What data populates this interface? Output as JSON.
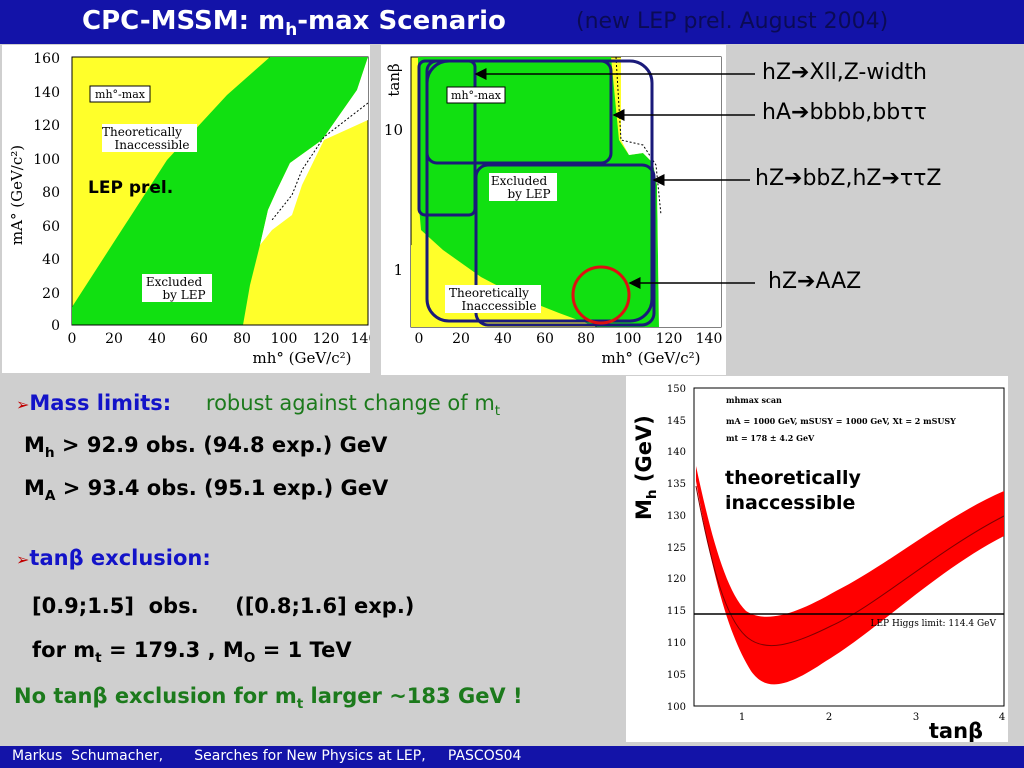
{
  "title": {
    "main_pre": "CPC-MSSM: m",
    "main_sub": "h",
    "main_post": "-max Scenario",
    "note": "(new LEP prel. August 2004)"
  },
  "plot_left": {
    "ylabel": "mA° (GeV/c²)",
    "xlabel": "mh° (GeV/c²)",
    "yticks": [
      "160",
      "140",
      "120",
      "100",
      "80",
      "60",
      "40",
      "20",
      "0"
    ],
    "xticks": [
      "0",
      "20",
      "40",
      "60",
      "80",
      "100",
      "120",
      "140"
    ],
    "scenario_box": "mh°-max",
    "text_theo_1": "Theoretically",
    "text_theo_2": "Inaccessible",
    "text_lep": "LEP prel.",
    "text_excl_1": "Excluded",
    "text_excl_2": "by LEP"
  },
  "plot_right": {
    "ylabel": "tanβ",
    "xlabel": "mh° (GeV/c²)",
    "yticks": [
      "10",
      "1"
    ],
    "xticks": [
      "0",
      "20",
      "40",
      "60",
      "80",
      "100",
      "120",
      "140"
    ],
    "scenario_box": "mh°-max",
    "text_excl_1": "Excluded",
    "text_excl_2": "by LEP",
    "text_theo_1": "Theoretically",
    "text_theo_2": "Inaccessible"
  },
  "annotations": {
    "a1_pre": "hZ",
    "a1_post": "Xll,Z-width",
    "a2_pre": "hA",
    "a2_post": "bbbb,bbττ",
    "a3_pre": "hZ",
    "a3_mid": "bbZ,hZ",
    "a3_post": "ττZ",
    "a4_pre": "hZ",
    "a4_post": "AAZ"
  },
  "bullets": {
    "mass_label": "Mass limits:",
    "mass_desc_pre": "robust against change of m",
    "mass_desc_sub": "t",
    "mh_pre": "M",
    "mh_sub": "h",
    "mh_post": " > 92.9 obs.  (94.8 exp.)  GeV",
    "ma_pre": "M",
    "ma_sub": "A",
    "ma_post": " > 93.4 obs.  (95.1 exp.)  GeV",
    "tanb_label": "tanβ exclusion:",
    "range_line": "[0.9;1.5]  obs.     ([0.8;1.6] exp.)",
    "mt_pre": "for m",
    "mt_sub": "t",
    "mt_mid": " = 179.3 , M",
    "mt_sub2": "O",
    "mt_post": " = 1 TeV",
    "no_excl_pre": "No tanβ exclusion for m",
    "no_excl_sub": "t",
    "no_excl_post": " larger ~183 GeV !"
  },
  "plot_bottom": {
    "ylabel_pre": "M",
    "ylabel_sub": "h",
    "ylabel_post": " (GeV)",
    "yticks": [
      "150",
      "145",
      "140",
      "135",
      "130",
      "125",
      "120",
      "115",
      "110",
      "105",
      "100"
    ],
    "xticks": [
      "1",
      "2",
      "3",
      "4"
    ],
    "xlabel": "tanβ",
    "legend_1": "mhmax scan",
    "legend_2": "mA = 1000 GeV, mSUSY = 1000 GeV, Xt = 2 mSUSY",
    "legend_3": "mt = 178 ± 4.2 GeV",
    "theo_1": "theoretically",
    "theo_2": "inaccessible",
    "limit_label": "LEP Higgs limit: 114.4 GeV"
  },
  "footer": "Markus  Schumacher,       Searches for New Physics at LEP,     PASCOS04",
  "colors": {
    "title_bar": "#1313a8",
    "yellow": "#ffff2a",
    "green": "#11e011",
    "red": "#ff0000",
    "navy": "#1a1a7a"
  }
}
